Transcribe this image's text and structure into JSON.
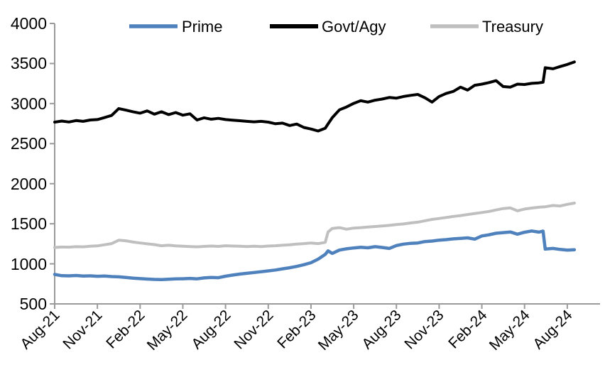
{
  "legend": {
    "items": [
      {
        "label": "Prime",
        "color": "#4F81BD"
      },
      {
        "label": "Govt/Agy",
        "color": "#000000"
      },
      {
        "label": "Treasury",
        "color": "#BFBFBF"
      }
    ]
  },
  "axes": {
    "y_tick_labels": [
      "4000",
      "3500",
      "3000",
      "2500",
      "2000",
      "1500",
      "1000",
      "500"
    ],
    "x_tick_labels": [
      "Aug-21",
      "Nov-21",
      "Feb-22",
      "May-22",
      "Aug-22",
      "Nov-22",
      "Feb-23",
      "May-23",
      "Aug-23",
      "Nov-23",
      "Feb-24",
      "May-24",
      "Aug-24"
    ]
  },
  "chart_data": {
    "type": "line",
    "title": "",
    "xlabel": "",
    "ylabel": "",
    "grid": false,
    "legend_position": "top",
    "ylim": [
      500,
      4000
    ],
    "y_tick_step": 500,
    "xlim": [
      0,
      38.3
    ],
    "x_unit": "months since Aug-21",
    "x_tick_months": [
      0,
      3,
      6,
      9,
      12,
      15,
      18,
      21,
      24,
      27,
      30,
      33,
      36
    ],
    "axis_color": "#9A9A9A",
    "x": [
      0,
      0.5,
      1,
      1.5,
      2,
      2.5,
      3,
      3.5,
      4,
      4.5,
      5,
      5.5,
      6,
      6.5,
      7,
      7.5,
      8,
      8.5,
      9,
      9.5,
      10,
      10.5,
      11,
      11.5,
      12,
      12.5,
      13,
      13.5,
      14,
      14.5,
      15,
      15.5,
      16,
      16.5,
      17,
      17.5,
      18,
      18.5,
      19,
      19.2,
      19.5,
      20,
      20.5,
      21,
      21.5,
      22,
      22.5,
      23,
      23.5,
      24,
      24.5,
      25,
      25.5,
      26,
      26.5,
      27,
      27.5,
      28,
      28.5,
      29,
      29.5,
      30,
      30.5,
      31,
      31.5,
      32,
      32.5,
      33,
      33.5,
      34,
      34.3,
      34.45,
      35,
      35.5,
      36,
      36.5
    ],
    "series": [
      {
        "name": "Prime",
        "color": "#4F81BD",
        "stroke_width": 4.5,
        "values": [
          868,
          852,
          850,
          854,
          848,
          850,
          845,
          848,
          841,
          838,
          830,
          822,
          815,
          810,
          806,
          804,
          808,
          812,
          814,
          818,
          813,
          824,
          830,
          827,
          846,
          860,
          872,
          882,
          892,
          901,
          912,
          923,
          938,
          951,
          968,
          989,
          1014,
          1058,
          1118,
          1162,
          1130,
          1172,
          1188,
          1198,
          1206,
          1200,
          1214,
          1204,
          1192,
          1228,
          1246,
          1256,
          1260,
          1278,
          1284,
          1296,
          1302,
          1312,
          1318,
          1324,
          1308,
          1348,
          1362,
          1382,
          1390,
          1398,
          1370,
          1394,
          1410,
          1396,
          1408,
          1184,
          1192,
          1180,
          1171,
          1176
        ]
      },
      {
        "name": "Govt/Agy",
        "color": "#000000",
        "stroke_width": 4,
        "values": [
          2768,
          2782,
          2770,
          2788,
          2778,
          2795,
          2800,
          2825,
          2852,
          2938,
          2918,
          2898,
          2880,
          2908,
          2868,
          2898,
          2862,
          2888,
          2855,
          2872,
          2795,
          2822,
          2805,
          2815,
          2800,
          2792,
          2786,
          2778,
          2772,
          2778,
          2768,
          2748,
          2756,
          2726,
          2744,
          2702,
          2682,
          2658,
          2692,
          2746,
          2825,
          2922,
          2958,
          3002,
          3036,
          3018,
          3042,
          3056,
          3076,
          3068,
          3088,
          3102,
          3114,
          3072,
          3018,
          3088,
          3126,
          3152,
          3205,
          3168,
          3228,
          3242,
          3262,
          3286,
          3212,
          3205,
          3242,
          3238,
          3252,
          3258,
          3266,
          3448,
          3434,
          3462,
          3488,
          3520
        ]
      },
      {
        "name": "Treasury",
        "color": "#BFBFBF",
        "stroke_width": 4,
        "values": [
          1204,
          1210,
          1208,
          1214,
          1212,
          1220,
          1224,
          1238,
          1252,
          1295,
          1288,
          1272,
          1260,
          1250,
          1240,
          1226,
          1232,
          1224,
          1220,
          1216,
          1212,
          1218,
          1222,
          1218,
          1226,
          1222,
          1220,
          1216,
          1220,
          1216,
          1222,
          1226,
          1232,
          1238,
          1246,
          1252,
          1260,
          1252,
          1268,
          1398,
          1442,
          1452,
          1432,
          1446,
          1452,
          1460,
          1466,
          1472,
          1480,
          1490,
          1498,
          1510,
          1520,
          1538,
          1554,
          1566,
          1578,
          1592,
          1602,
          1616,
          1628,
          1640,
          1654,
          1672,
          1690,
          1698,
          1662,
          1684,
          1696,
          1706,
          1710,
          1712,
          1728,
          1722,
          1742,
          1758
        ]
      }
    ]
  }
}
